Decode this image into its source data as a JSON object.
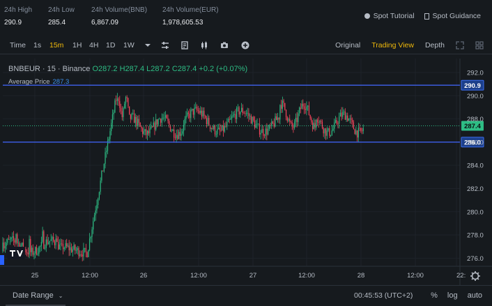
{
  "stats": [
    {
      "label": "24h High",
      "value": "290.9"
    },
    {
      "label": "24h Low",
      "value": "285.4"
    },
    {
      "label": "24h Volume(BNB)",
      "value": "6,867.09"
    },
    {
      "label": "24h Volume(EUR)",
      "value": "1,978,605.53"
    }
  ],
  "links": {
    "tutorial": "Spot Tutorial",
    "guidance": "Spot Guidance"
  },
  "toolbar": {
    "time_label": "Time",
    "intervals": [
      "1s",
      "15m",
      "1H",
      "4H",
      "1D",
      "1W"
    ],
    "active_interval": "15m",
    "views": [
      "Original",
      "Trading View",
      "Depth"
    ],
    "active_view": "Trading View"
  },
  "chart_header": {
    "symbol": "BNBEUR · 15 · Binance",
    "open": "O287.2",
    "high": "H287.4",
    "low": "L287.2",
    "close": "C287.4",
    "change": "+0.2 (+0.07%)",
    "avg_label": "Average Price",
    "avg_value": "287.3"
  },
  "chart_data": {
    "type": "candlestick",
    "y_ticks": [
      "292.0",
      "290.0",
      "288.0",
      "286.0",
      "284.0",
      "282.0",
      "280.0",
      "278.0",
      "276.0"
    ],
    "ylim": [
      275.3,
      293.2
    ],
    "x_ticks": [
      "25",
      "12:00",
      "26",
      "12:00",
      "27",
      "12:00",
      "28",
      "12:00",
      "22:"
    ],
    "price_tags": [
      {
        "label": "290.9",
        "value": 290.9,
        "style": "line"
      },
      {
        "label": "287.4",
        "value": 287.4,
        "style": "current"
      },
      {
        "label": "286.0",
        "value": 286.0,
        "style": "line"
      }
    ],
    "colors": {
      "up": "#2ebd85",
      "down": "#f6465d",
      "line": "#3b5bdb",
      "current": "#2ebd85"
    }
  },
  "bottom": {
    "date_range": "Date Range",
    "clock": "00:45:53 (UTC+2)",
    "scale_options": [
      "%",
      "log",
      "auto"
    ]
  }
}
